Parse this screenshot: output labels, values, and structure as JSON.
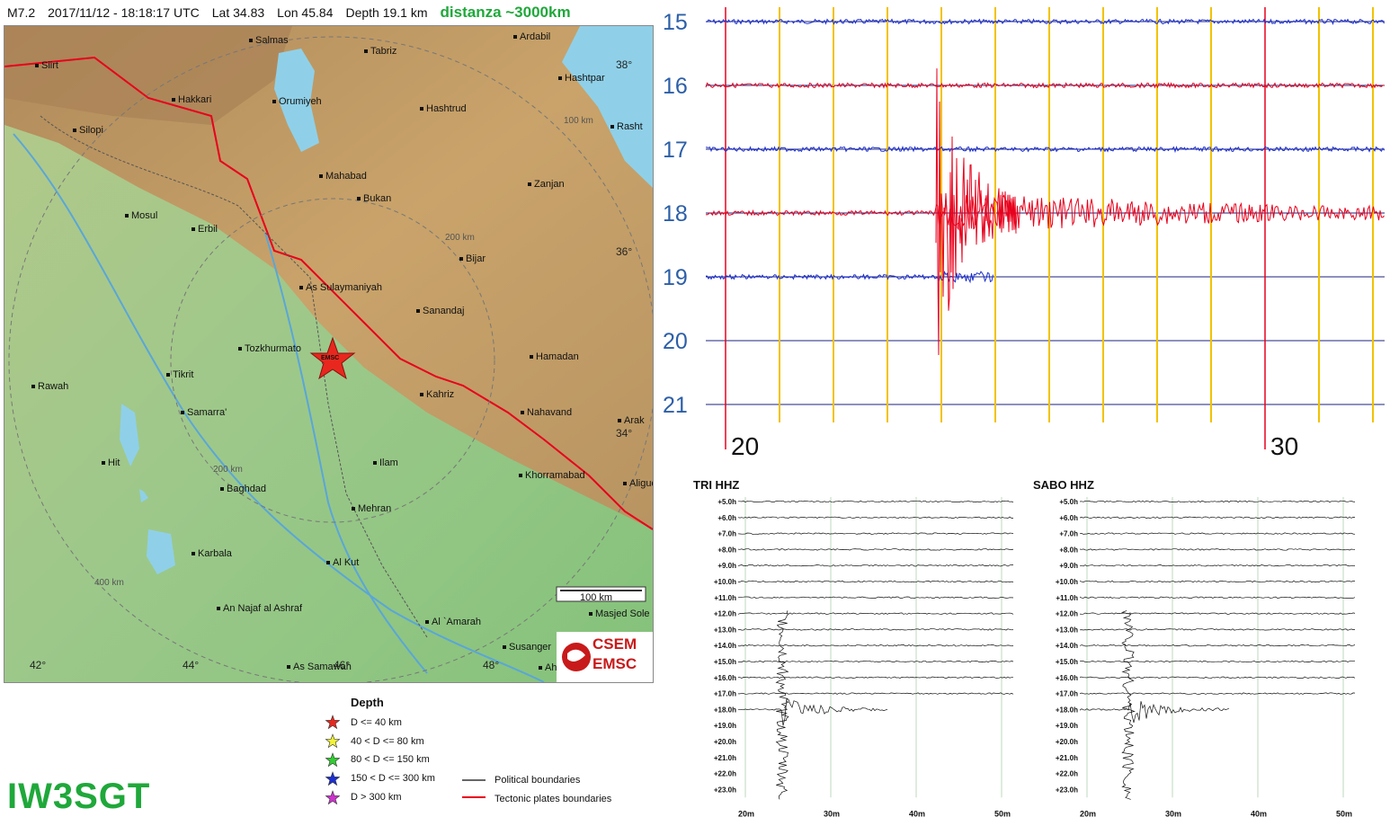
{
  "header": {
    "magnitude": "M7.2",
    "datetime": "2017/11/12 - 18:18:17 UTC",
    "lat": "Lat 34.83",
    "lon": "Lon 45.84",
    "depth": "Depth  19.1 km",
    "distance": "distanza ~3000km"
  },
  "map": {
    "cities": [
      {
        "name": "Salmas"
      },
      {
        "name": "Tabriz"
      },
      {
        "name": "Ardabil"
      },
      {
        "name": "Siirt"
      },
      {
        "name": "Hashtpar"
      },
      {
        "name": "Hakkari"
      },
      {
        "name": "Orumiyeh"
      },
      {
        "name": "Hashtrud"
      },
      {
        "name": "Silopi"
      },
      {
        "name": "Rasht"
      },
      {
        "name": "Mahabad"
      },
      {
        "name": "Bukan"
      },
      {
        "name": "Zanjan"
      },
      {
        "name": "Mosul"
      },
      {
        "name": "Erbil"
      },
      {
        "name": "Bijar"
      },
      {
        "name": "As Sulaymaniyah"
      },
      {
        "name": "Sanandaj"
      },
      {
        "name": "Tozkhurmato"
      },
      {
        "name": "Hamadan"
      },
      {
        "name": "Tikrit"
      },
      {
        "name": "Rawah"
      },
      {
        "name": "Kahriz"
      },
      {
        "name": "Samarra'"
      },
      {
        "name": "Nahavand"
      },
      {
        "name": "Arak"
      },
      {
        "name": "Hit"
      },
      {
        "name": "Ilam"
      },
      {
        "name": "Khorramabad"
      },
      {
        "name": "Baghdad"
      },
      {
        "name": "Mehran"
      },
      {
        "name": "Aligud"
      },
      {
        "name": "Karbala"
      },
      {
        "name": "Al Kut"
      },
      {
        "name": "An Najaf al Ashraf"
      },
      {
        "name": "Al `Amarah"
      },
      {
        "name": "Masjed Sole"
      },
      {
        "name": "Susanger"
      },
      {
        "name": "As Samawah"
      },
      {
        "name": "Ah"
      }
    ],
    "lat_labels": [
      "38°",
      "36°",
      "34°"
    ],
    "lon_labels": [
      "42°",
      "44°",
      "46°",
      "48°"
    ],
    "km_labels": [
      "100 km",
      "200 km",
      "200 km",
      "400 km"
    ],
    "scale_bar": "100 km",
    "epicenter_label": "EMSC",
    "logo_top": "CSEM",
    "logo_bottom": "EMSC"
  },
  "legend": {
    "title": "Depth",
    "items": [
      {
        "label": "D <= 40 km",
        "color": "#e8281e"
      },
      {
        "label": "40 < D <= 80 km",
        "color": "#f2f23a"
      },
      {
        "label": "80 < D <= 150 km",
        "color": "#33cc33"
      },
      {
        "label": "150 < D <= 300 km",
        "color": "#1d2fcf"
      },
      {
        "label": "D > 300 km",
        "color": "#cc33cc"
      }
    ],
    "lines": [
      {
        "label": "Political boundaries",
        "color": "#333333"
      },
      {
        "label": "Tectonic plates boundaries",
        "color": "#e8281e"
      }
    ]
  },
  "callsign": "IW3SGT",
  "drum": {
    "hours": [
      "15",
      "16",
      "17",
      "18",
      "19",
      "20",
      "21"
    ],
    "minute_labels": [
      "20",
      "30"
    ],
    "colors": {
      "blue": "#1d2fcf",
      "red": "#e8001c",
      "yellow": "#f2c200",
      "grid": "#1a237e"
    }
  },
  "heli_tri": {
    "title": "TRI HHZ",
    "rows": [
      "+5.0h",
      "+6.0h",
      "+7.0h",
      "+8.0h",
      "+9.0h",
      "+10.0h",
      "+11.0h",
      "+12.0h",
      "+13.0h",
      "+14.0h",
      "+15.0h",
      "+16.0h",
      "+17.0h",
      "+18.0h",
      "+19.0h",
      "+20.0h",
      "+21.0h",
      "+22.0h",
      "+23.0h"
    ],
    "minutes": [
      "20m",
      "30m",
      "40m",
      "50m"
    ]
  },
  "heli_sabo": {
    "title": "SABO HHZ",
    "rows": [
      "+5.0h",
      "+6.0h",
      "+7.0h",
      "+8.0h",
      "+9.0h",
      "+10.0h",
      "+11.0h",
      "+12.0h",
      "+13.0h",
      "+14.0h",
      "+15.0h",
      "+16.0h",
      "+17.0h",
      "+18.0h",
      "+19.0h",
      "+20.0h",
      "+21.0h",
      "+22.0h",
      "+23.0h"
    ],
    "minutes": [
      "20m",
      "30m",
      "40m",
      "50m"
    ]
  }
}
